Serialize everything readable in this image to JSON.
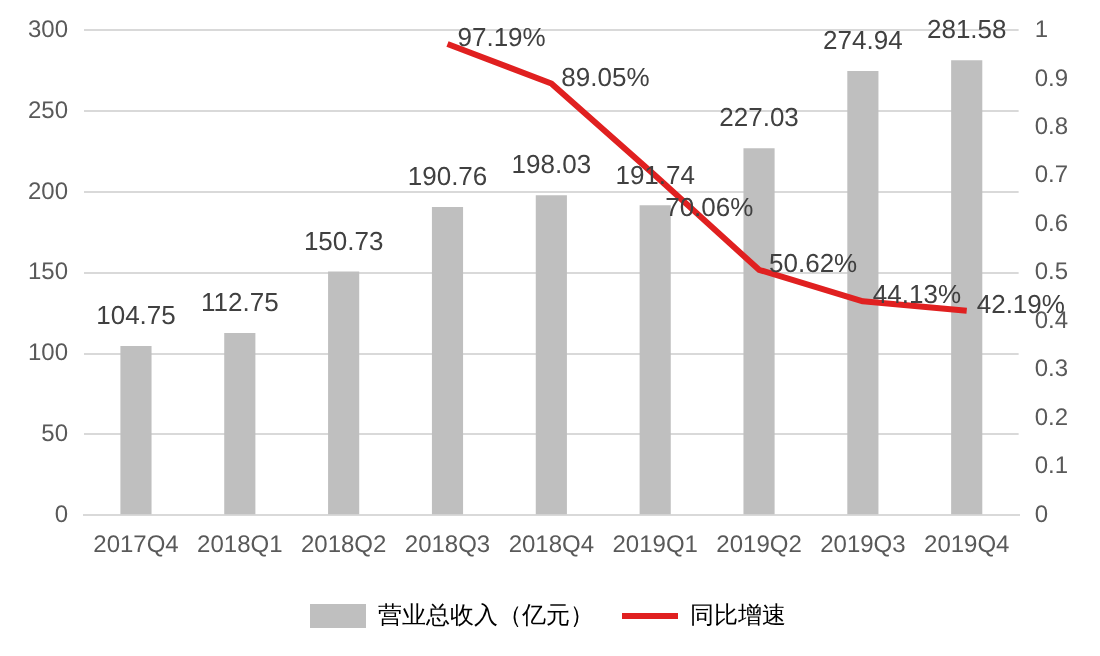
{
  "chart_data": {
    "type": "bar",
    "categories": [
      "2017Q4",
      "2018Q1",
      "2018Q2",
      "2018Q3",
      "2018Q4",
      "2019Q1",
      "2019Q2",
      "2019Q3",
      "2019Q4"
    ],
    "series": [
      {
        "name": "营业总收入（亿元）",
        "color": "#bfbfbf",
        "values": [
          104.75,
          112.75,
          150.73,
          190.76,
          198.03,
          191.74,
          227.03,
          274.94,
          281.58
        ]
      },
      {
        "name": "同比增速",
        "type": "line",
        "axis": "y2",
        "color": "#e02020",
        "values": [
          null,
          null,
          null,
          0.9719,
          0.8905,
          0.7006,
          0.5062,
          0.4413,
          0.4219
        ],
        "value_labels": [
          null,
          null,
          null,
          "97.19%",
          "89.05%",
          "70.06%",
          "50.62%",
          "44.13%",
          "42.19%"
        ]
      }
    ],
    "data_labels": true,
    "ylim": [
      0,
      300
    ],
    "yticks": [
      0,
      50,
      100,
      150,
      200,
      250,
      300
    ],
    "y2lim": [
      0,
      1
    ],
    "y2ticks": [
      0,
      0.1,
      0.2,
      0.3,
      0.4,
      0.5,
      0.6,
      0.7,
      0.8,
      0.9,
      1
    ],
    "grid": "y",
    "legend": "bottom",
    "marker": "none",
    "line_style": "solid"
  }
}
